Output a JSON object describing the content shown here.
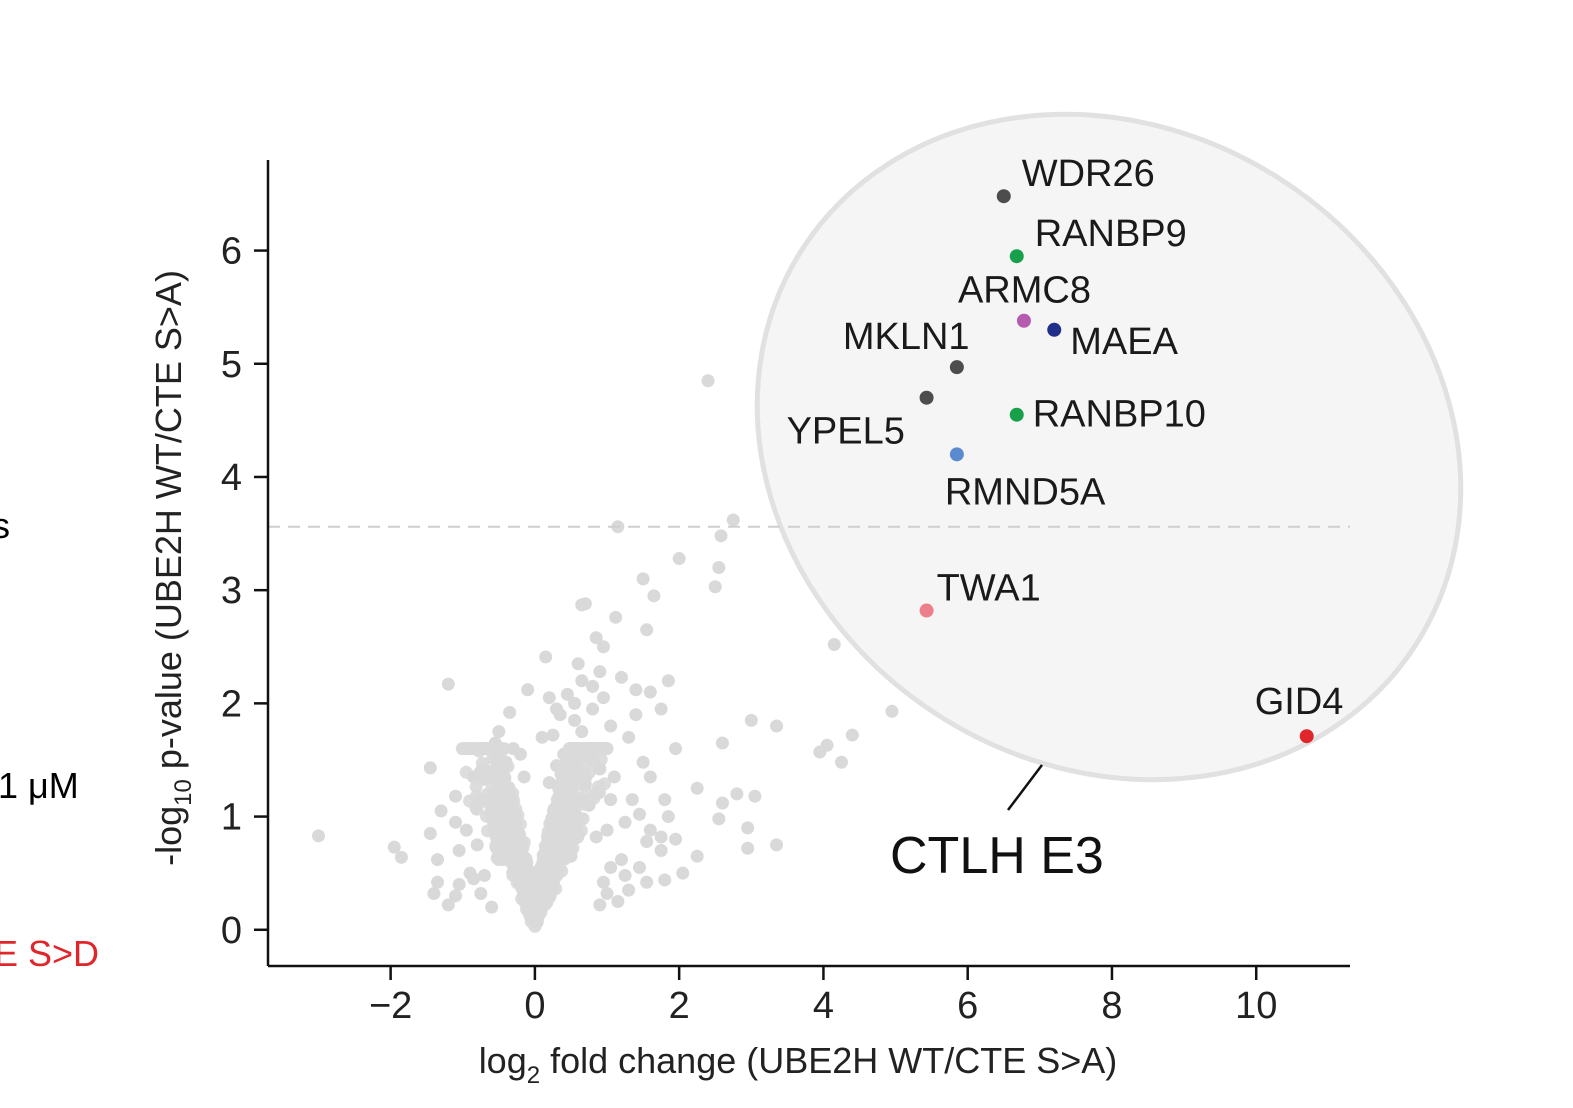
{
  "clipped_left": {
    "letter_s": "s",
    "concentration": "1 μM",
    "mutant_label": "E S>D",
    "mutant_color": "#e0262b"
  },
  "chart_data": {
    "type": "scatter",
    "title": "",
    "xlabel_prefix": "log",
    "xlabel_sub": "2",
    "xlabel_rest": " fold change (UBE2H WT/CTE S>A)",
    "ylabel_prefix": "-log",
    "ylabel_sub": "10",
    "ylabel_rest": " p-value (UBE2H WT/CTE S>A)",
    "xlim": [
      -3.7,
      11.3
    ],
    "ylim": [
      -0.32,
      6.8
    ],
    "xticks": [
      -2,
      0,
      2,
      4,
      6,
      8,
      10
    ],
    "xtick_labels": [
      "−2",
      "0",
      "2",
      "4",
      "6",
      "8",
      "10"
    ],
    "yticks": [
      0,
      1,
      2,
      3,
      4,
      5,
      6
    ],
    "ytick_labels": [
      "0",
      "1",
      "2",
      "3",
      "4",
      "5",
      "6"
    ],
    "threshold_y": 3.56,
    "group_label": "CTLH E3",
    "background_color": "#d9d9d9",
    "group_fill": "#f3f3f3",
    "group_stroke": "#e1e1e1",
    "highlighted": [
      {
        "label": "WDR26",
        "x": 6.5,
        "y": 6.48,
        "color": "#4d4d4d"
      },
      {
        "label": "RANBP9",
        "x": 6.68,
        "y": 5.95,
        "color": "#17a04a"
      },
      {
        "label": "ARMC8",
        "x": 6.78,
        "y": 5.38,
        "color": "#b75bb1"
      },
      {
        "label": "MAEA",
        "x": 7.2,
        "y": 5.3,
        "color": "#1f2f8a"
      },
      {
        "label": "MKLN1",
        "x": 5.85,
        "y": 4.97,
        "color": "#4d4d4d"
      },
      {
        "label": "YPEL5",
        "x": 5.43,
        "y": 4.7,
        "color": "#4d4d4d"
      },
      {
        "label": "RANBP10",
        "x": 6.68,
        "y": 4.55,
        "color": "#17a04a"
      },
      {
        "label": "RMND5A",
        "x": 5.85,
        "y": 4.2,
        "color": "#5b8ad0"
      },
      {
        "label": "TWA1",
        "x": 5.43,
        "y": 2.82,
        "color": "#ec7f8a"
      },
      {
        "label": "GID4",
        "x": 10.7,
        "y": 1.71,
        "color": "#e0262b"
      }
    ],
    "background_points": [
      [
        2.4,
        4.85
      ],
      [
        2.75,
        3.62
      ],
      [
        2.58,
        3.48
      ],
      [
        1.15,
        3.56
      ],
      [
        2.0,
        3.28
      ],
      [
        2.55,
        3.2
      ],
      [
        1.5,
        3.1
      ],
      [
        2.5,
        3.03
      ],
      [
        1.65,
        2.95
      ],
      [
        0.65,
        2.87
      ],
      [
        0.7,
        2.88
      ],
      [
        1.12,
        2.76
      ],
      [
        1.55,
        2.65
      ],
      [
        0.85,
        2.58
      ],
      [
        0.95,
        2.5
      ],
      [
        4.15,
        2.52
      ],
      [
        0.15,
        2.41
      ],
      [
        0.6,
        2.35
      ],
      [
        0.9,
        2.28
      ],
      [
        0.65,
        2.2
      ],
      [
        0.8,
        2.15
      ],
      [
        1.2,
        2.23
      ],
      [
        1.85,
        2.2
      ],
      [
        -1.2,
        2.17
      ],
      [
        -0.1,
        2.12
      ],
      [
        0.2,
        2.05
      ],
      [
        0.45,
        2.08
      ],
      [
        1.4,
        2.12
      ],
      [
        1.6,
        2.1
      ],
      [
        1.75,
        1.95
      ],
      [
        -0.35,
        1.92
      ],
      [
        0.35,
        1.9
      ],
      [
        0.55,
        1.85
      ],
      [
        1.05,
        1.8
      ],
      [
        1.4,
        1.9
      ],
      [
        4.95,
        1.93
      ],
      [
        3.0,
        1.85
      ],
      [
        3.35,
        1.8
      ],
      [
        -0.5,
        1.75
      ],
      [
        0.1,
        1.7
      ],
      [
        0.7,
        1.6
      ],
      [
        1.3,
        1.7
      ],
      [
        4.4,
        1.72
      ],
      [
        2.6,
        1.65
      ],
      [
        1.95,
        1.6
      ],
      [
        4.05,
        1.63
      ],
      [
        3.95,
        1.57
      ],
      [
        -0.2,
        1.55
      ],
      [
        0.6,
        1.5
      ],
      [
        1.5,
        1.48
      ],
      [
        4.25,
        1.48
      ],
      [
        -0.7,
        1.42
      ],
      [
        -1.45,
        1.43
      ],
      [
        -0.4,
        1.48
      ],
      [
        0.3,
        1.45
      ],
      [
        0.9,
        1.42
      ],
      [
        -0.85,
        1.35
      ],
      [
        1.1,
        1.35
      ],
      [
        1.6,
        1.35
      ],
      [
        -0.4,
        1.25
      ],
      [
        0.2,
        1.3
      ],
      [
        0.7,
        1.28
      ],
      [
        2.25,
        1.25
      ],
      [
        2.8,
        1.2
      ],
      [
        3.05,
        1.18
      ],
      [
        -1.1,
        1.18
      ],
      [
        -0.75,
        1.15
      ],
      [
        1.35,
        1.15
      ],
      [
        1.8,
        1.15
      ],
      [
        2.6,
        1.12
      ],
      [
        -1.3,
        1.05
      ],
      [
        -0.6,
        1.05
      ],
      [
        0.55,
        1.05
      ],
      [
        1.45,
        1.02
      ],
      [
        1.85,
        1.0
      ],
      [
        -1.1,
        0.95
      ],
      [
        -0.95,
        0.88
      ],
      [
        1.0,
        0.88
      ],
      [
        1.25,
        0.95
      ],
      [
        2.55,
        0.98
      ],
      [
        1.6,
        0.88
      ],
      [
        1.75,
        0.82
      ],
      [
        2.95,
        0.9
      ],
      [
        -1.45,
        0.85
      ],
      [
        -0.2,
        0.8
      ],
      [
        0.85,
        0.82
      ],
      [
        1.55,
        0.78
      ],
      [
        -0.8,
        0.75
      ],
      [
        1.95,
        0.8
      ],
      [
        3.35,
        0.75
      ],
      [
        2.95,
        0.72
      ],
      [
        1.75,
        0.7
      ],
      [
        -3.0,
        0.83
      ],
      [
        -1.95,
        0.73
      ],
      [
        -1.85,
        0.64
      ],
      [
        -1.35,
        0.62
      ],
      [
        -1.05,
        0.7
      ],
      [
        -0.5,
        0.62
      ],
      [
        0.2,
        0.7
      ],
      [
        0.5,
        0.65
      ],
      [
        1.2,
        0.62
      ],
      [
        2.25,
        0.65
      ],
      [
        1.05,
        0.55
      ],
      [
        1.45,
        0.55
      ],
      [
        -0.9,
        0.5
      ],
      [
        -0.7,
        0.48
      ],
      [
        1.25,
        0.48
      ],
      [
        2.05,
        0.5
      ],
      [
        -1.35,
        0.42
      ],
      [
        -1.05,
        0.4
      ],
      [
        -0.85,
        0.45
      ],
      [
        0.95,
        0.42
      ],
      [
        1.55,
        0.42
      ],
      [
        1.8,
        0.44
      ],
      [
        -1.4,
        0.32
      ],
      [
        -1.1,
        0.3
      ],
      [
        -0.75,
        0.32
      ],
      [
        1.0,
        0.32
      ],
      [
        1.3,
        0.35
      ],
      [
        -1.2,
        0.22
      ],
      [
        -0.6,
        0.2
      ],
      [
        0.9,
        0.22
      ],
      [
        1.15,
        0.25
      ],
      [
        -0.3,
        1.6
      ],
      [
        0.4,
        1.55
      ],
      [
        0.25,
        1.72
      ],
      [
        -0.15,
        1.35
      ],
      [
        0.45,
        1.35
      ],
      [
        0.65,
        1.75
      ],
      [
        0.8,
        1.95
      ],
      [
        0.55,
        2.0
      ],
      [
        0.3,
        1.95
      ],
      [
        0.95,
        2.05
      ],
      [
        1.0,
        1.6
      ],
      [
        -0.55,
        1.65
      ],
      [
        -0.45,
        1.2
      ],
      [
        0.75,
        1.1
      ],
      [
        1.05,
        1.15
      ],
      [
        0.85,
        1.2
      ]
    ]
  }
}
